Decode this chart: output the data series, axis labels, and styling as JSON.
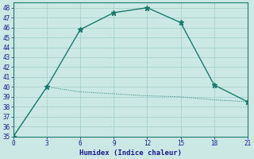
{
  "line1_x": [
    0,
    3,
    6,
    9,
    12,
    15,
    18,
    21
  ],
  "line1_y": [
    35,
    40,
    45.8,
    47.5,
    48,
    46.5,
    40.2,
    38.5
  ],
  "line2_x": [
    0,
    3,
    6,
    9,
    12,
    15,
    18,
    21
  ],
  "line2_y": [
    35,
    40,
    39.5,
    39.3,
    39.1,
    39.0,
    38.7,
    38.5
  ],
  "line_color": "#1a7a6e",
  "bg_color": "#cce8e4",
  "grid_color": "#9ecec8",
  "spine_color": "#1a7a6e",
  "xlabel": "Humidex (Indice chaleur)",
  "xlim": [
    0,
    21
  ],
  "ylim": [
    35,
    48.5
  ],
  "xticks": [
    0,
    3,
    6,
    9,
    12,
    15,
    18,
    21
  ],
  "yticks": [
    35,
    36,
    37,
    38,
    39,
    40,
    41,
    42,
    43,
    44,
    45,
    46,
    47,
    48
  ],
  "marker": "*",
  "marker_size": 5,
  "linewidth": 1.0,
  "font_color": "#1a1a8c",
  "tick_fontsize": 5.5,
  "xlabel_fontsize": 6.5
}
